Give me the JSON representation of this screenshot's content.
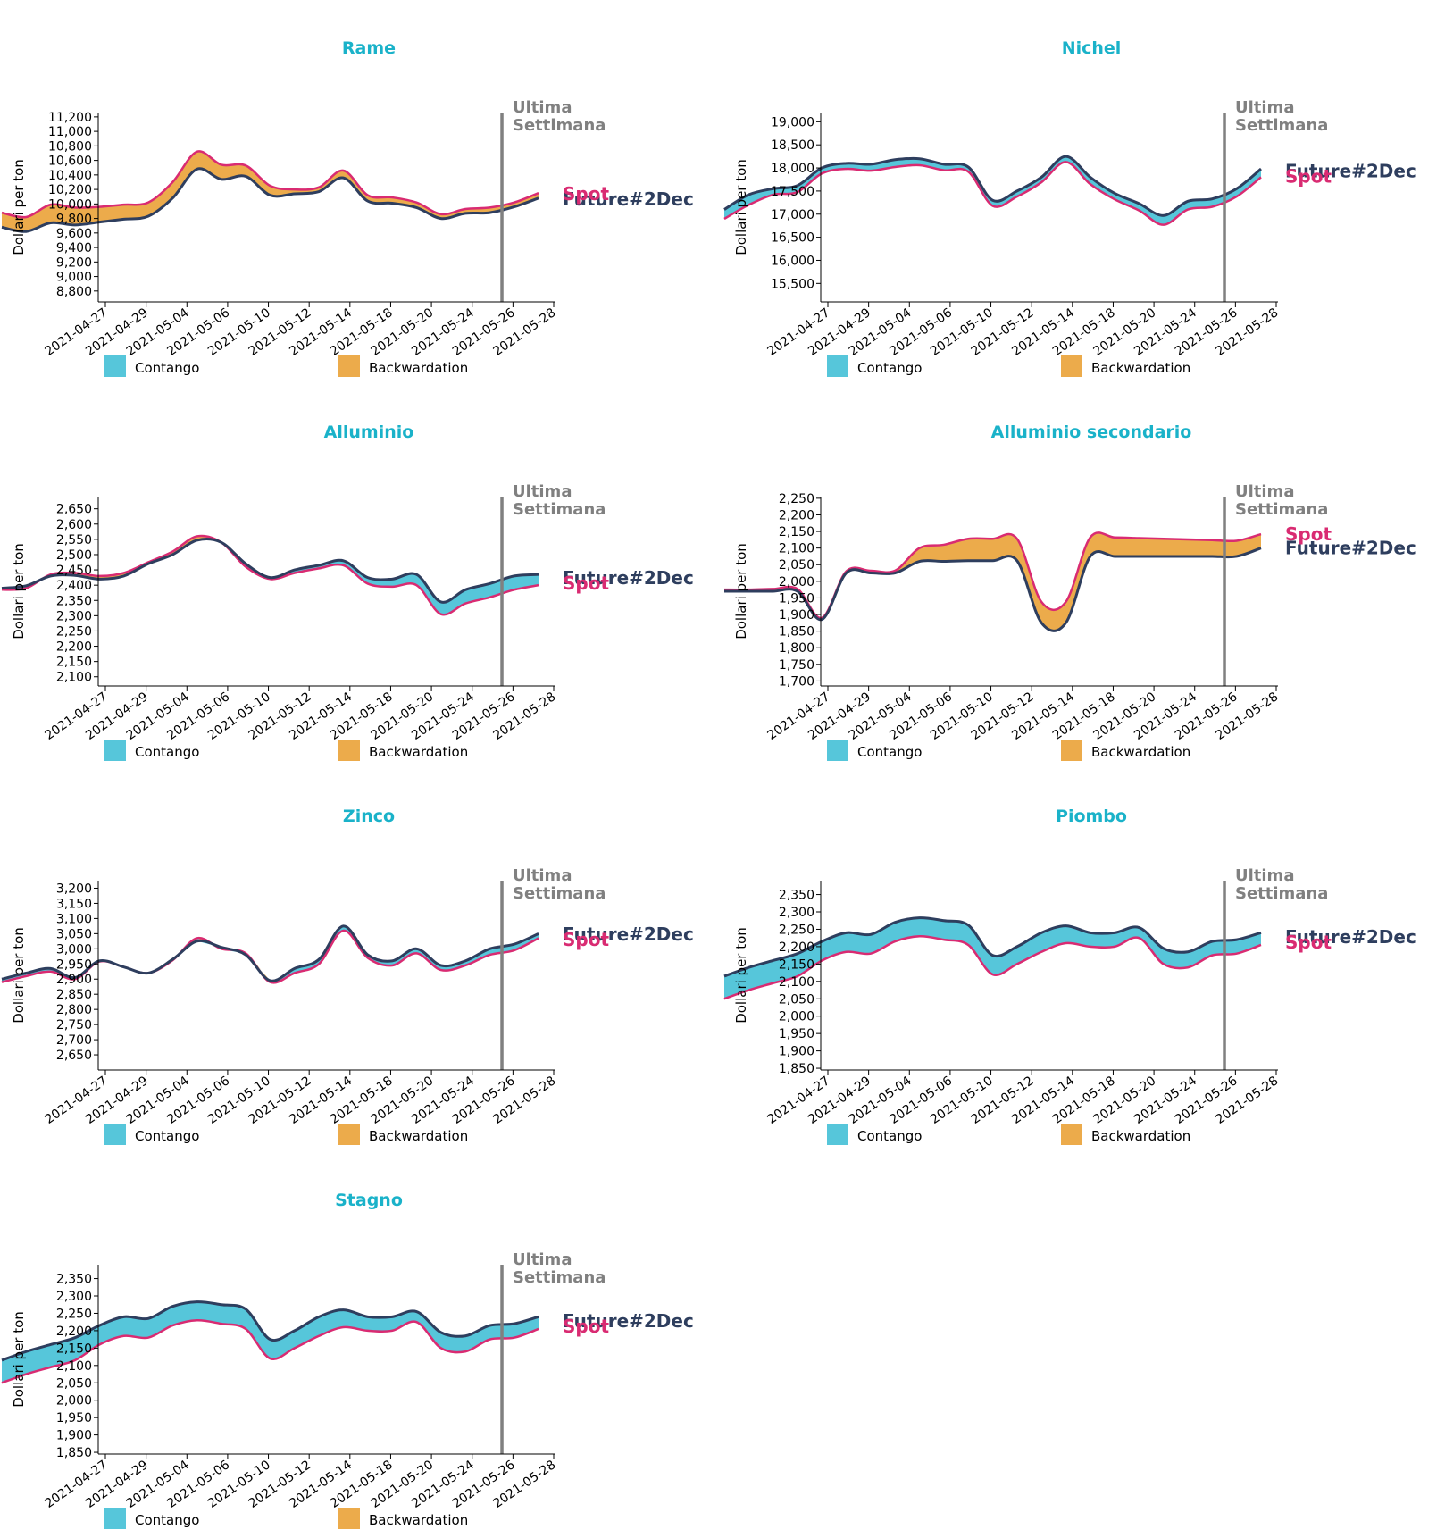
{
  "colors": {
    "title": "#1ab2c9",
    "future": "#2e3e5e",
    "spot": "#d92b72",
    "contango": "#56c6da",
    "backwardation": "#ecab4b",
    "vline": "#808080"
  },
  "labels": {
    "ultima_line1": "Ultima",
    "ultima_line2": "Settimana",
    "future": "Future#2Dec",
    "spot": "Spot",
    "ylabel": "Dollari per ton",
    "contango": "Contango",
    "backwardation": "Backwardation"
  },
  "chart_data": [
    {
      "type": "area",
      "title": "Rame",
      "ylabel": "Dollari per ton",
      "x_ticks": [
        "2021-04-27",
        "2021-04-29",
        "2021-05-04",
        "2021-05-06",
        "2021-05-10",
        "2021-05-12",
        "2021-05-14",
        "2021-05-18",
        "2021-05-20",
        "2021-05-24",
        "2021-05-26",
        "2021-05-28"
      ],
      "y_ticks": [
        8800,
        9000,
        9200,
        9400,
        9600,
        9800,
        10000,
        10200,
        10400,
        10600,
        10800,
        11000,
        11200
      ],
      "ylim": [
        8650,
        11260
      ],
      "vline_x": 20.5,
      "series": [
        {
          "name": "Future#2Dec",
          "values": [
            9680,
            9620,
            9740,
            9710,
            9750,
            9790,
            9830,
            10080,
            10480,
            10340,
            10380,
            10120,
            10140,
            10170,
            10360,
            10040,
            10010,
            9950,
            9800,
            9870,
            9880,
            9960,
            10080
          ]
        },
        {
          "name": "Spot",
          "values": [
            9880,
            9820,
            9990,
            9950,
            9960,
            9990,
            10020,
            10300,
            10720,
            10540,
            10530,
            10250,
            10200,
            10230,
            10460,
            10120,
            10090,
            10020,
            9860,
            9930,
            9950,
            10020,
            10150
          ]
        }
      ]
    },
    {
      "type": "area",
      "title": "Nichel",
      "ylabel": "Dollari per ton",
      "x_ticks": [
        "2021-04-27",
        "2021-04-29",
        "2021-05-04",
        "2021-05-06",
        "2021-05-10",
        "2021-05-12",
        "2021-05-14",
        "2021-05-18",
        "2021-05-20",
        "2021-05-24",
        "2021-05-26",
        "2021-05-28"
      ],
      "y_ticks": [
        15500,
        16000,
        16500,
        17000,
        17500,
        18000,
        18500,
        19000
      ],
      "ylim": [
        15100,
        19200
      ],
      "vline_x": 20.5,
      "series": [
        {
          "name": "Future#2Dec",
          "values": [
            17100,
            17420,
            17550,
            17620,
            18000,
            18100,
            18080,
            18180,
            18200,
            18080,
            18020,
            17300,
            17500,
            17800,
            18250,
            17800,
            17450,
            17230,
            16970,
            17280,
            17330,
            17550,
            17980
          ]
        },
        {
          "name": "Spot",
          "values": [
            16900,
            17200,
            17420,
            17480,
            17880,
            17980,
            17940,
            18020,
            18060,
            17950,
            17920,
            17180,
            17380,
            17690,
            18130,
            17650,
            17320,
            17080,
            16770,
            17100,
            17160,
            17380,
            17800
          ]
        }
      ]
    },
    {
      "type": "area",
      "title": "Alluminio",
      "ylabel": "Dollari per ton",
      "x_ticks": [
        "2021-04-27",
        "2021-04-29",
        "2021-05-04",
        "2021-05-06",
        "2021-05-10",
        "2021-05-12",
        "2021-05-14",
        "2021-05-18",
        "2021-05-20",
        "2021-05-24",
        "2021-05-26",
        "2021-05-28"
      ],
      "y_ticks": [
        2100,
        2150,
        2200,
        2250,
        2300,
        2350,
        2400,
        2450,
        2500,
        2550,
        2600,
        2650
      ],
      "ylim": [
        2070,
        2690
      ],
      "vline_x": 20.5,
      "series": [
        {
          "name": "Future#2Dec",
          "values": [
            2390,
            2398,
            2430,
            2432,
            2420,
            2430,
            2470,
            2500,
            2547,
            2540,
            2470,
            2425,
            2450,
            2465,
            2480,
            2425,
            2420,
            2435,
            2345,
            2385,
            2405,
            2430,
            2435
          ]
        },
        {
          "name": "Spot",
          "values": [
            2385,
            2390,
            2435,
            2440,
            2430,
            2440,
            2475,
            2510,
            2560,
            2540,
            2460,
            2420,
            2440,
            2455,
            2465,
            2405,
            2395,
            2400,
            2305,
            2340,
            2360,
            2385,
            2400
          ]
        }
      ]
    },
    {
      "type": "area",
      "title": "Alluminio secondario",
      "ylabel": "Dollari per ton",
      "x_ticks": [
        "2021-04-27",
        "2021-04-29",
        "2021-05-04",
        "2021-05-06",
        "2021-05-10",
        "2021-05-12",
        "2021-05-14",
        "2021-05-18",
        "2021-05-20",
        "2021-05-24",
        "2021-05-26",
        "2021-05-28"
      ],
      "y_ticks": [
        1700,
        1750,
        1800,
        1850,
        1900,
        1950,
        2000,
        2050,
        2100,
        2150,
        2200,
        2250
      ],
      "ylim": [
        1685,
        2255
      ],
      "vline_x": 20.5,
      "series": [
        {
          "name": "Future#2Dec",
          "values": [
            1970,
            1970,
            1970,
            1970,
            1885,
            2025,
            2025,
            2025,
            2060,
            2060,
            2062,
            2062,
            2062,
            1875,
            1875,
            2075,
            2075,
            2075,
            2075,
            2075,
            2075,
            2075,
            2100
          ]
        },
        {
          "name": "Spot",
          "values": [
            1975,
            1975,
            1977,
            1977,
            1890,
            2030,
            2032,
            2032,
            2100,
            2110,
            2128,
            2128,
            2128,
            1938,
            1938,
            2132,
            2132,
            2130,
            2128,
            2126,
            2124,
            2122,
            2142
          ]
        }
      ]
    },
    {
      "type": "area",
      "title": "Zinco",
      "ylabel": "Dollari per ton",
      "x_ticks": [
        "2021-04-27",
        "2021-04-29",
        "2021-05-04",
        "2021-05-06",
        "2021-05-10",
        "2021-05-12",
        "2021-05-14",
        "2021-05-18",
        "2021-05-20",
        "2021-05-24",
        "2021-05-26",
        "2021-05-28"
      ],
      "y_ticks": [
        2650,
        2700,
        2750,
        2800,
        2850,
        2900,
        2950,
        3000,
        3050,
        3100,
        3150,
        3200
      ],
      "ylim": [
        2600,
        3225
      ],
      "vline_x": 20.5,
      "series": [
        {
          "name": "Future#2Dec",
          "values": [
            2900,
            2920,
            2935,
            2905,
            2960,
            2940,
            2920,
            2965,
            3025,
            3005,
            2980,
            2895,
            2935,
            2965,
            3075,
            2980,
            2960,
            3000,
            2945,
            2960,
            3000,
            3015,
            3050
          ]
        },
        {
          "name": "Spot",
          "values": [
            2890,
            2910,
            2925,
            2900,
            2958,
            2940,
            2920,
            2962,
            3035,
            3000,
            2985,
            2890,
            2920,
            2950,
            3060,
            2970,
            2945,
            2985,
            2930,
            2945,
            2980,
            2995,
            3035
          ]
        }
      ]
    },
    {
      "type": "area",
      "title": "Piombo",
      "ylabel": "Dollari per ton",
      "x_ticks": [
        "2021-04-27",
        "2021-04-29",
        "2021-05-04",
        "2021-05-06",
        "2021-05-10",
        "2021-05-12",
        "2021-05-14",
        "2021-05-18",
        "2021-05-20",
        "2021-05-24",
        "2021-05-26",
        "2021-05-28"
      ],
      "y_ticks": [
        1850,
        1900,
        1950,
        2000,
        2050,
        2100,
        2150,
        2200,
        2250,
        2300,
        2350
      ],
      "ylim": [
        1845,
        2390
      ],
      "vline_x": 20.5,
      "series": [
        {
          "name": "Future#2Dec",
          "values": [
            2115,
            2140,
            2160,
            2180,
            2215,
            2240,
            2235,
            2270,
            2283,
            2275,
            2262,
            2175,
            2200,
            2240,
            2260,
            2240,
            2240,
            2255,
            2195,
            2185,
            2215,
            2220,
            2240
          ]
        },
        {
          "name": "Spot",
          "values": [
            2050,
            2075,
            2095,
            2115,
            2160,
            2185,
            2180,
            2215,
            2230,
            2220,
            2205,
            2120,
            2150,
            2185,
            2210,
            2200,
            2200,
            2225,
            2150,
            2140,
            2175,
            2180,
            2205
          ]
        }
      ]
    },
    {
      "type": "area",
      "title": "Stagno",
      "ylabel": "Dollari per ton",
      "x_ticks": [
        "2021-04-27",
        "2021-04-29",
        "2021-05-04",
        "2021-05-06",
        "2021-05-10",
        "2021-05-12",
        "2021-05-14",
        "2021-05-18",
        "2021-05-20",
        "2021-05-24",
        "2021-05-26",
        "2021-05-28"
      ],
      "y_ticks": [
        1850,
        1900,
        1950,
        2000,
        2050,
        2100,
        2150,
        2200,
        2250,
        2300,
        2350
      ],
      "ylim": [
        1845,
        2390
      ],
      "vline_x": 20.5,
      "series": [
        {
          "name": "Future#2Dec",
          "values": [
            2115,
            2140,
            2160,
            2180,
            2215,
            2240,
            2235,
            2270,
            2283,
            2275,
            2262,
            2175,
            2200,
            2240,
            2260,
            2240,
            2240,
            2255,
            2195,
            2185,
            2215,
            2220,
            2240
          ]
        },
        {
          "name": "Spot",
          "values": [
            2050,
            2075,
            2095,
            2115,
            2160,
            2185,
            2180,
            2215,
            2230,
            2220,
            2205,
            2120,
            2150,
            2185,
            2210,
            2200,
            2200,
            2225,
            2150,
            2140,
            2175,
            2180,
            2205
          ]
        }
      ]
    }
  ]
}
